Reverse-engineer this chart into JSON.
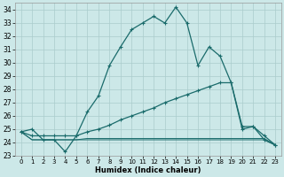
{
  "xlabel": "Humidex (Indice chaleur)",
  "bg_color": "#cce8e8",
  "grid_color": "#aacccc",
  "line_color": "#1a6b6b",
  "xlim": [
    -0.5,
    23.5
  ],
  "ylim": [
    23,
    34.5
  ],
  "yticks": [
    23,
    24,
    25,
    26,
    27,
    28,
    29,
    30,
    31,
    32,
    33,
    34
  ],
  "xticks": [
    0,
    1,
    2,
    3,
    4,
    5,
    6,
    7,
    8,
    9,
    10,
    11,
    12,
    13,
    14,
    15,
    16,
    17,
    18,
    19,
    20,
    21,
    22,
    23
  ],
  "series": {
    "main": [
      24.8,
      25.0,
      24.2,
      24.2,
      23.3,
      24.5,
      26.3,
      27.5,
      29.8,
      31.2,
      32.5,
      33.0,
      33.5,
      33.0,
      34.2,
      33.0,
      29.8,
      31.2,
      30.5,
      28.5,
      25.0,
      25.2,
      24.2,
      23.8
    ],
    "diag_up": [
      24.8,
      24.5,
      24.5,
      24.5,
      24.5,
      24.5,
      24.8,
      25.0,
      25.3,
      25.7,
      26.0,
      26.3,
      26.6,
      27.0,
      27.3,
      27.6,
      27.9,
      28.2,
      28.5,
      28.5,
      25.2,
      25.2,
      24.5,
      23.8
    ],
    "flat_mid": [
      24.8,
      24.2,
      24.2,
      24.2,
      24.2,
      24.2,
      24.3,
      24.3,
      24.3,
      24.3,
      24.3,
      24.3,
      24.3,
      24.3,
      24.3,
      24.3,
      24.3,
      24.3,
      24.3,
      24.3,
      24.3,
      24.3,
      24.3,
      23.8
    ],
    "flat_low": [
      24.8,
      24.2,
      24.2,
      24.2,
      24.2,
      24.2,
      24.2,
      24.2,
      24.2,
      24.2,
      24.2,
      24.2,
      24.2,
      24.2,
      24.2,
      24.2,
      24.2,
      24.2,
      24.2,
      24.2,
      24.2,
      24.2,
      24.2,
      23.8
    ]
  }
}
